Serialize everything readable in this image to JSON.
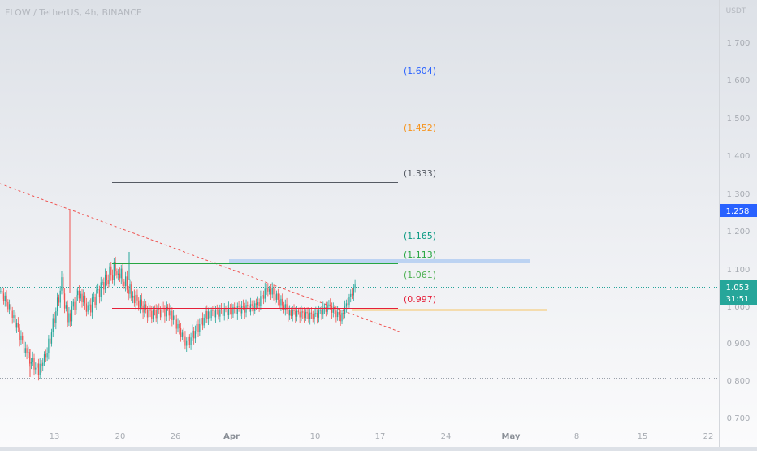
{
  "header": {
    "symbol_title": "FLOW / TetherUS, 4h, BINANCE"
  },
  "price_axis": {
    "currency": "USDT",
    "ticks": [
      "1.700",
      "1.600",
      "1.500",
      "1.400",
      "1.300",
      "1.200",
      "1.100",
      "1.000",
      "0.900",
      "0.800",
      "0.700"
    ],
    "marker_price": "1.258",
    "last_price": "1.053",
    "countdown": "31:51"
  },
  "time_axis": {
    "ticks": [
      "13",
      "20",
      "26",
      "Apr",
      "10",
      "17",
      "24",
      "May",
      "8",
      "15",
      "22"
    ]
  },
  "levels": [
    {
      "label": "(1.604)",
      "value": 1.604,
      "color": "#2962ff"
    },
    {
      "label": "(1.452)",
      "value": 1.452,
      "color": "#f7931a"
    },
    {
      "label": "(1.333)",
      "value": 1.333,
      "color": "#555a63"
    },
    {
      "label": "(1.165)",
      "value": 1.165,
      "color": "#089981"
    },
    {
      "label": "(1.113)",
      "value": 1.113,
      "color": "#26a641"
    },
    {
      "label": "(1.061)",
      "value": 1.061,
      "color": "#4caf50"
    },
    {
      "label": "(0.997)",
      "value": 0.997,
      "color": "#e5203a"
    }
  ],
  "colors": {
    "up": "#26a69a",
    "down": "#ef5350",
    "marker": "#2962ff",
    "trendline": "#ef5350"
  }
}
